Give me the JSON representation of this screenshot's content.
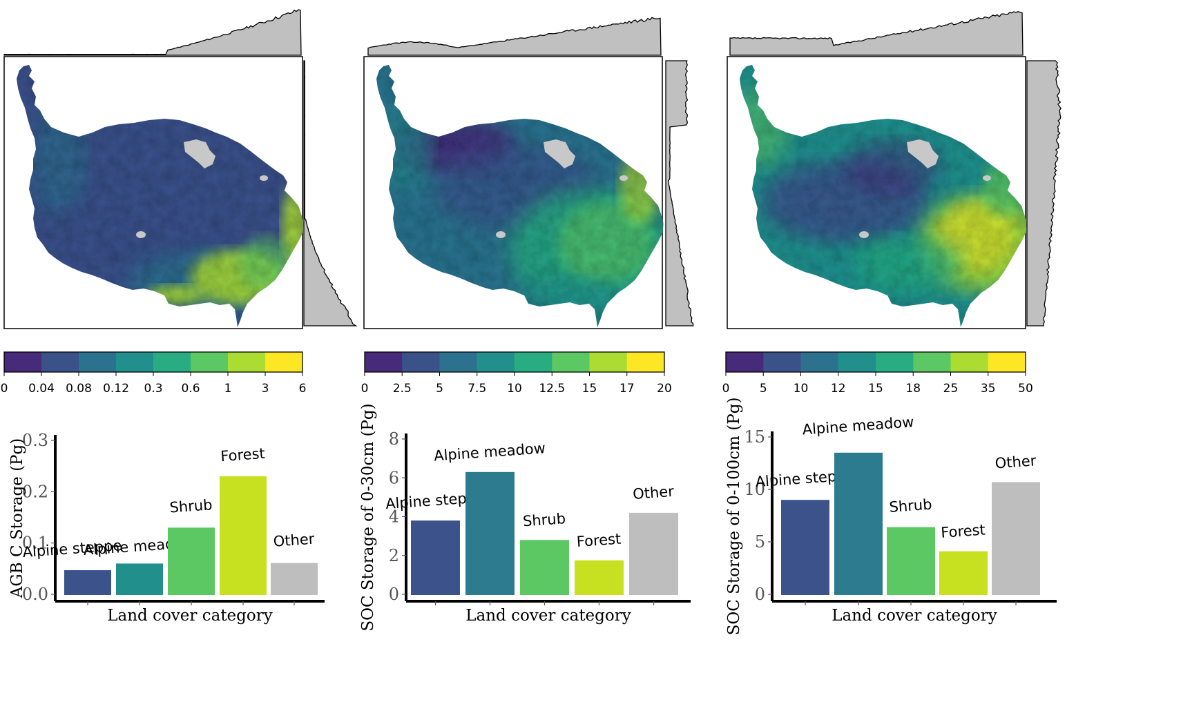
{
  "palette": [
    "#472a7a",
    "#3b518a",
    "#2c728e",
    "#21908d",
    "#27ad81",
    "#5cc863",
    "#aadc32",
    "#fde725"
  ],
  "map_colors": {
    "ocean_none": "#ffffff",
    "nodata": "#c8c8c8",
    "profile_fill": "#c0c0c0",
    "profile_line": "#000000"
  },
  "chart_data": [
    {
      "type": "heatmap",
      "panel": "map-agb",
      "colorbar": {
        "breaks": [
          "0",
          "0.04",
          "0.08",
          "0.12",
          "0.3",
          "0.6",
          "1",
          "3",
          "6"
        ]
      },
      "description_level": "low values dominate, high values in southeast"
    },
    {
      "type": "heatmap",
      "panel": "map-soc30",
      "colorbar": {
        "breaks": [
          "0",
          "2.5",
          "5",
          "7.5",
          "10",
          "12.5",
          "15",
          "17",
          "20"
        ]
      }
    },
    {
      "type": "heatmap",
      "panel": "map-soc100",
      "colorbar": {
        "breaks": [
          "0",
          "5",
          "10",
          "12",
          "15",
          "18",
          "25",
          "35",
          "50"
        ]
      }
    },
    {
      "type": "bar",
      "panel": "bar-agb",
      "categories": [
        "Alpine steppe",
        "Alpine meadow",
        "Shrub",
        "Forest",
        "Other"
      ],
      "values": [
        0.047,
        0.06,
        0.13,
        0.23,
        0.061
      ],
      "colors": [
        "#3b528b",
        "#21908d",
        "#5cc863",
        "#c7e020",
        "#bebebe"
      ],
      "xlabel": "Land cover category",
      "ylabel": "AGB C Storage (Pg)",
      "ylim": [
        0,
        0.3
      ],
      "yticks": [
        "0.0",
        "0.1",
        "0.2",
        "0.3"
      ]
    },
    {
      "type": "bar",
      "panel": "bar-soc30",
      "categories": [
        "Alpine steppe",
        "Alpine meadow",
        "Shrub",
        "Forest",
        "Other"
      ],
      "values": [
        3.8,
        6.3,
        2.8,
        1.75,
        4.2
      ],
      "colors": [
        "#3b528b",
        "#2c7b8e",
        "#5cc863",
        "#c7e020",
        "#bebebe"
      ],
      "xlabel": "Land cover category",
      "ylabel": "SOC Storage of 0-30cm (Pg)",
      "ylim": [
        0,
        8
      ],
      "yticks": [
        "0",
        "2",
        "4",
        "6",
        "8"
      ]
    },
    {
      "type": "bar",
      "panel": "bar-soc100",
      "categories": [
        "Alpine steppe",
        "Alpine meadow",
        "Shrub",
        "Forest",
        "Other"
      ],
      "values": [
        9.0,
        13.5,
        6.4,
        4.1,
        10.7
      ],
      "colors": [
        "#3b528b",
        "#2c7b8e",
        "#5cc863",
        "#c7e020",
        "#bebebe"
      ],
      "xlabel": "Land cover category",
      "ylabel": "SOC Storage of 0-100cm (Pg)",
      "ylim": [
        0,
        15
      ],
      "yticks": [
        "0",
        "5",
        "10",
        "15"
      ]
    }
  ]
}
